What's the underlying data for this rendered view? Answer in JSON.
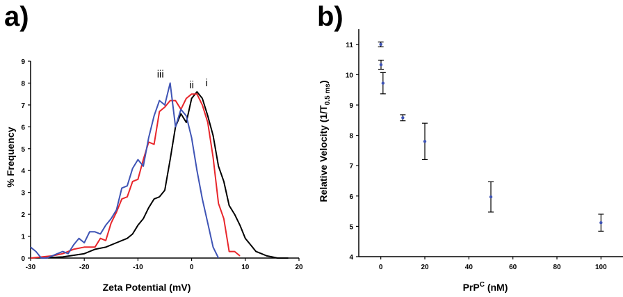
{
  "chart_data": [
    {
      "panel": "a)",
      "type": "line",
      "xlabel": "Zeta Potential (mV)",
      "ylabel": "% Frequency",
      "xlim": [
        -30,
        20
      ],
      "ylim": [
        0,
        9
      ],
      "xticks": [
        -30,
        -20,
        -10,
        0,
        10,
        20
      ],
      "yticks": [
        0,
        1,
        2,
        3,
        4,
        5,
        6,
        7,
        8,
        9
      ],
      "grid": false,
      "series": [
        {
          "name": "i",
          "color": "#000000",
          "x": [
            -28,
            -24,
            -20,
            -18,
            -16,
            -14,
            -12,
            -11,
            -10,
            -9,
            -8,
            -7,
            -6,
            -5,
            -4,
            -3,
            -2,
            -1,
            0,
            1,
            2,
            3,
            4,
            5,
            6,
            7,
            8,
            9,
            10,
            11,
            12,
            13,
            14,
            15,
            16,
            18
          ],
          "values": [
            0,
            0.05,
            0.2,
            0.4,
            0.5,
            0.7,
            0.9,
            1.1,
            1.5,
            1.8,
            2.3,
            2.7,
            2.8,
            3.1,
            4.5,
            6.0,
            6.6,
            6.2,
            7.3,
            7.6,
            7.3,
            6.5,
            5.6,
            4.2,
            3.5,
            2.4,
            2.0,
            1.5,
            0.9,
            0.6,
            0.3,
            0.2,
            0.1,
            0.05,
            0,
            0
          ]
        },
        {
          "name": "ii",
          "color": "#e8262b",
          "x": [
            -30,
            -26,
            -24,
            -22,
            -20,
            -18,
            -17,
            -16,
            -15,
            -14,
            -13,
            -12,
            -11,
            -10,
            -9,
            -8,
            -7,
            -6,
            -5,
            -4,
            -3,
            -2,
            -1,
            0,
            1,
            2,
            3,
            4,
            5,
            6,
            7,
            8,
            9
          ],
          "values": [
            0,
            0.1,
            0.2,
            0.4,
            0.5,
            0.5,
            0.9,
            0.8,
            1.6,
            2.1,
            2.7,
            2.8,
            3.5,
            3.6,
            4.5,
            5.3,
            5.2,
            6.7,
            6.9,
            7.2,
            7.2,
            6.8,
            7.3,
            7.5,
            7.5,
            7.0,
            6.2,
            4.6,
            2.5,
            1.8,
            0.3,
            0.3,
            0.1
          ]
        },
        {
          "name": "iii",
          "color": "#3f54b5",
          "x": [
            -30,
            -29,
            -28,
            -27,
            -26,
            -25,
            -24,
            -23,
            -22,
            -21,
            -20,
            -19,
            -18,
            -17,
            -16,
            -15,
            -14,
            -13,
            -12,
            -11,
            -10,
            -9,
            -8,
            -7,
            -6,
            -5,
            -4,
            -3,
            -2,
            -1,
            0,
            1,
            2,
            3,
            4,
            5
          ],
          "values": [
            0.5,
            0.3,
            0,
            0,
            0.1,
            0.2,
            0.3,
            0.2,
            0.6,
            0.9,
            0.7,
            1.2,
            1.2,
            1.1,
            1.5,
            1.8,
            2.2,
            3.2,
            3.3,
            4.1,
            4.5,
            4.2,
            5.5,
            6.5,
            7.2,
            7.0,
            8.0,
            6.0,
            6.8,
            6.5,
            5.5,
            4.0,
            2.7,
            1.6,
            0.5,
            0
          ]
        }
      ]
    },
    {
      "panel": "b)",
      "type": "scatter",
      "xlabel_main": "PrP",
      "xlabel_sup": "C",
      "xlabel_rest": " (nM)",
      "ylabel_main": "Relative Velocity (1/T",
      "ylabel_sub": "0.5 ms",
      "ylabel_rest": ")",
      "xlim": [
        -10,
        110
      ],
      "ylim": [
        4,
        11.5
      ],
      "xticks": [
        0,
        20,
        40,
        60,
        80,
        100
      ],
      "yticks": [
        4,
        5,
        6,
        7,
        8,
        9,
        10,
        11
      ],
      "grid": false,
      "marker_color": "#3f54b5",
      "points": [
        {
          "x": 0,
          "y": 11.0,
          "err": 0.08
        },
        {
          "x": 0.1,
          "y": 10.33,
          "err": 0.15
        },
        {
          "x": 1,
          "y": 9.72,
          "err": 0.35
        },
        {
          "x": 10,
          "y": 8.58,
          "err": 0.1
        },
        {
          "x": 20,
          "y": 7.8,
          "err": 0.6
        },
        {
          "x": 50,
          "y": 5.97,
          "err": 0.5
        },
        {
          "x": 100,
          "y": 5.12,
          "err": 0.28
        }
      ]
    }
  ]
}
